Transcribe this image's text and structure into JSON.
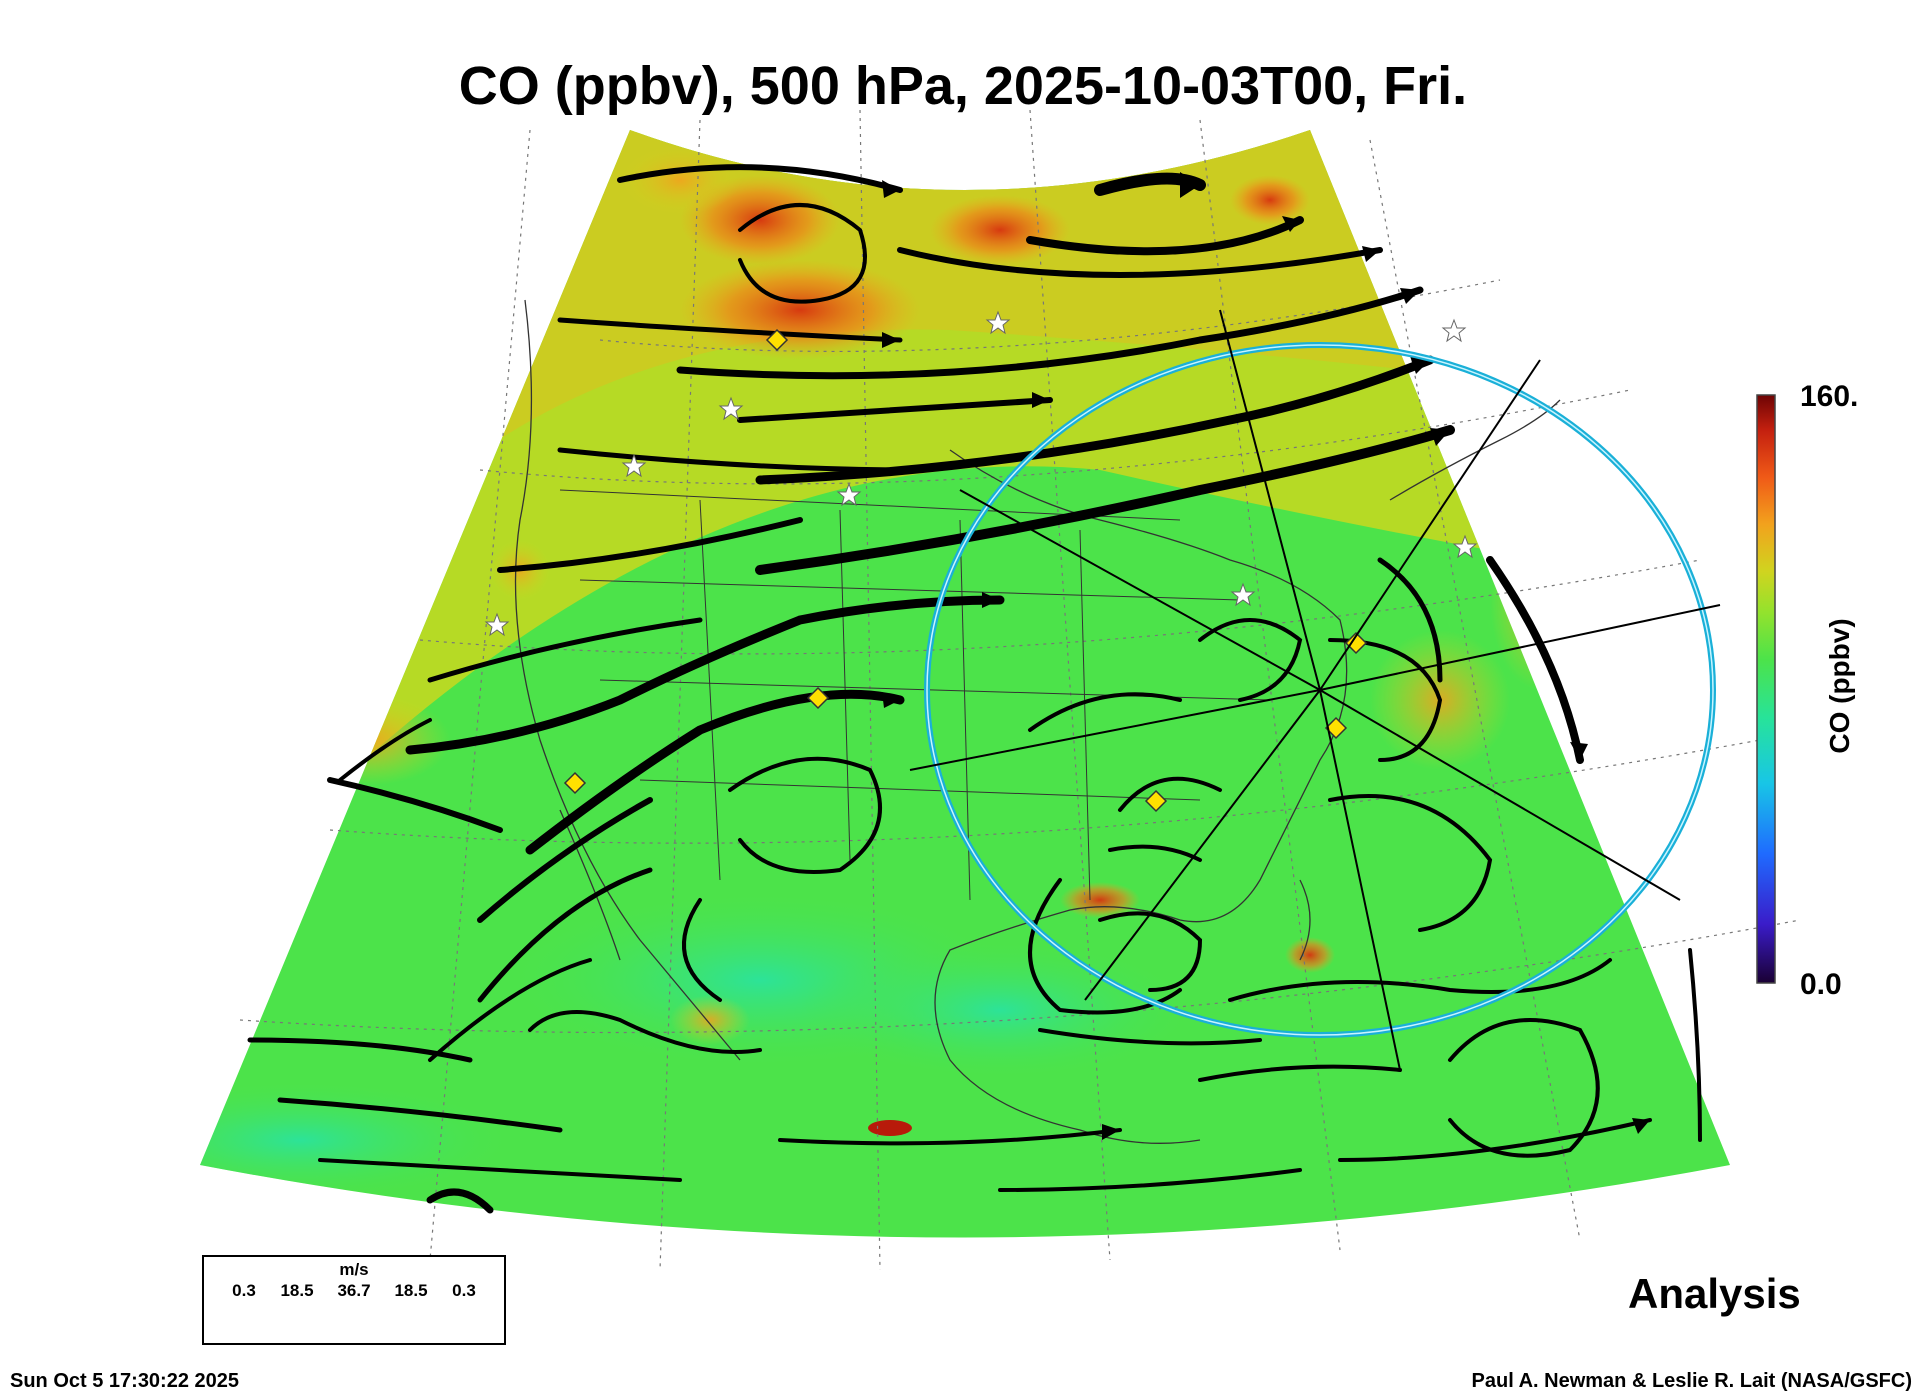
{
  "title": "CO (ppbv), 500 hPa, 2025-10-03T00, Fri.",
  "colorbar": {
    "label": "CO (ppbv)",
    "max_label": "160.",
    "min_label": "0.0",
    "range": [
      0,
      160
    ],
    "colors": [
      "#1a0033",
      "#3a1cc9",
      "#1f6bff",
      "#18c6e6",
      "#27e39a",
      "#4ce34a",
      "#93e22d",
      "#d0d41f",
      "#f2a21d",
      "#f05a17",
      "#c4200f",
      "#6e0404"
    ]
  },
  "legend": {
    "unit": "m/s",
    "speeds": [
      "0.3",
      "18.5",
      "36.7",
      "18.5",
      "0.3"
    ]
  },
  "run_label": "Analysis",
  "timestamp": "Sun Oct  5 17:30:22 2025",
  "credit": "Paul A. Newman & Leslie R. Lait (NASA/GSFC)",
  "colors": {
    "field_dominant": "#4ce34a",
    "high_co": "#f05a17",
    "ring": "#1ab0d8",
    "streamlines": "#000000",
    "markers": "#ffe000"
  }
}
